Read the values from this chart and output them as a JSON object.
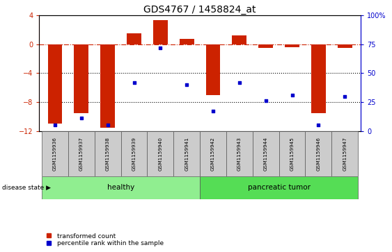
{
  "title": "GDS4767 / 1458824_at",
  "samples": [
    "GSM1159936",
    "GSM1159937",
    "GSM1159938",
    "GSM1159939",
    "GSM1159940",
    "GSM1159941",
    "GSM1159942",
    "GSM1159943",
    "GSM1159944",
    "GSM1159945",
    "GSM1159946",
    "GSM1159947"
  ],
  "transformed_count": [
    -11.0,
    -9.5,
    -11.5,
    1.5,
    3.3,
    0.7,
    -7.0,
    1.2,
    -0.5,
    -0.4,
    -9.5,
    -0.5
  ],
  "percentile_rank": [
    5,
    11,
    5,
    42,
    72,
    40,
    17,
    42,
    26,
    31,
    5,
    30
  ],
  "ylim_left": [
    -12,
    4
  ],
  "ylim_right": [
    0,
    100
  ],
  "yticks_left": [
    -12,
    -8,
    -4,
    0,
    4
  ],
  "yticks_right": [
    0,
    25,
    50,
    75,
    100
  ],
  "bar_color": "#cc2200",
  "scatter_color": "#0000cc",
  "hline_color": "#cc2200",
  "dotted_line_color": "#000000",
  "healthy_color": "#90ee90",
  "tumor_color": "#55dd55",
  "healthy_label": "healthy",
  "tumor_label": "pancreatic tumor",
  "disease_label": "disease state",
  "healthy_samples": 6,
  "tumor_samples": 6,
  "legend_red_label": "transformed count",
  "legend_blue_label": "percentile rank within the sample",
  "bar_width": 0.55,
  "title_fontsize": 10
}
